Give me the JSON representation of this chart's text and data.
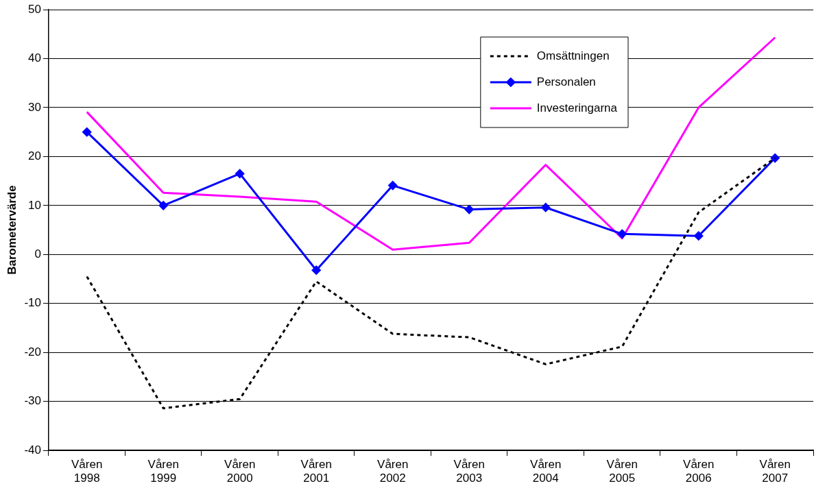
{
  "chart_data": {
    "type": "line",
    "ylabel": "Barometervärde",
    "categories": [
      "Våren 1998",
      "Våren 1999",
      "Våren 2000",
      "Våren 2001",
      "Våren 2002",
      "Våren 2003",
      "Våren 2004",
      "Våren 2005",
      "Våren 2006",
      "Våren 2007"
    ],
    "series": [
      {
        "name": "Omsättningen",
        "color": "#000000",
        "line_style": "dotted",
        "marker": "none",
        "values": [
          -4.5,
          -31.4,
          -29.5,
          -5.5,
          -16.2,
          -16.9,
          -22.4,
          -18.8,
          8.6,
          19.7
        ]
      },
      {
        "name": "Personalen",
        "color": "#0000ff",
        "line_style": "solid",
        "marker": "diamond",
        "values": [
          25,
          10,
          16.5,
          -3.2,
          14.1,
          9.2,
          9.6,
          4.2,
          3.8,
          19.7
        ]
      },
      {
        "name": "Investeringarna",
        "color": "#ff00ff",
        "line_style": "solid",
        "marker": "none",
        "values": [
          29.1,
          12.6,
          11.8,
          10.8,
          1.0,
          2.4,
          18.3,
          3.3,
          30,
          44.3
        ]
      }
    ],
    "ylim": [
      -40,
      50
    ],
    "yticks": [
      -40,
      -30,
      -20,
      -10,
      0,
      10,
      20,
      30,
      40,
      50
    ],
    "grid": "y",
    "legend": "top right"
  }
}
